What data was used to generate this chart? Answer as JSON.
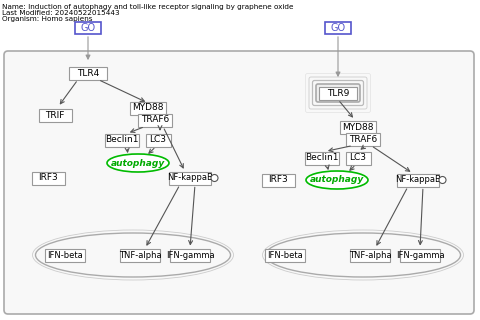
{
  "title_line1": "Name: Induction of autophagy and toll-like receptor signaling by graphene oxide",
  "title_line2": "Last Modified: 20240522015443",
  "title_line3": "Organism: Homo sapiens",
  "bg_color": "#ffffff",
  "box_edge": "#999999",
  "box_fill": "#ffffff",
  "green_edge": "#00bb00",
  "green_text": "#00aa00",
  "blue_color": "#5555cc",
  "arrow_color": "#555555",
  "light_gray": "#cccccc",
  "medium_gray": "#aaaaaa",
  "panel_fill": "#f5f5f5",
  "panel_edge": "#aaaaaa"
}
